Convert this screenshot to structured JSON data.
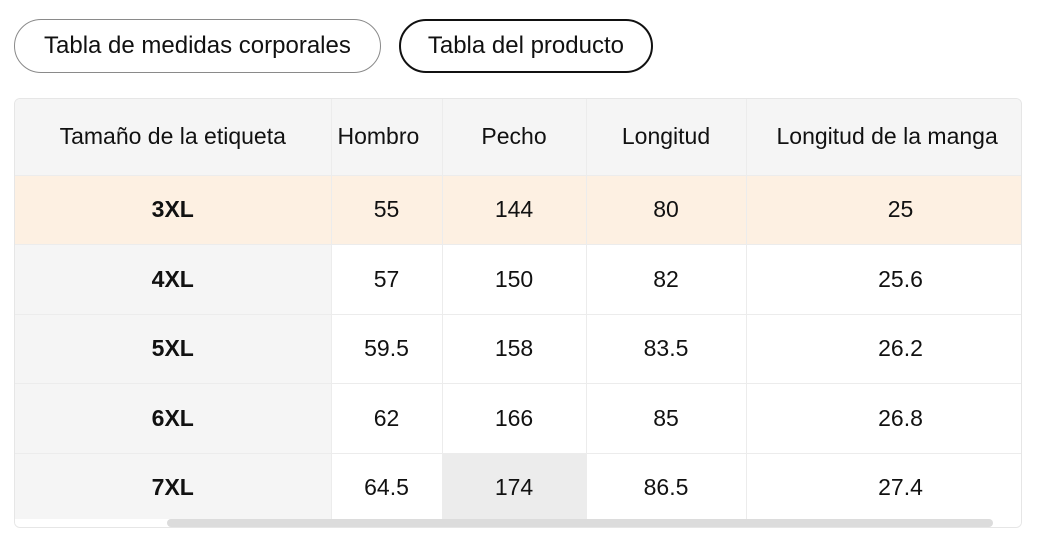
{
  "tabs": [
    {
      "label": "Tabla de medidas corporales",
      "active": false
    },
    {
      "label": "Tabla del producto",
      "active": true
    }
  ],
  "table": {
    "headers": {
      "size": "Tamaño de la etiqueta",
      "shoulder": "Hombro",
      "chest": "Pecho",
      "length": "Longitud",
      "sleeve": "Longitud de la manga"
    },
    "rows": [
      {
        "size": "3XL",
        "shoulder": "55",
        "chest": "144",
        "length": "80",
        "sleeve": "25"
      },
      {
        "size": "4XL",
        "shoulder": "57",
        "chest": "150",
        "length": "82",
        "sleeve": "25.6"
      },
      {
        "size": "5XL",
        "shoulder": "59.5",
        "chest": "158",
        "length": "83.5",
        "sleeve": "26.2"
      },
      {
        "size": "6XL",
        "shoulder": "62",
        "chest": "166",
        "length": "85",
        "sleeve": "26.8"
      },
      {
        "size": "7XL",
        "shoulder": "64.5",
        "chest": "174",
        "length": "86.5",
        "sleeve": "27.4"
      }
    ]
  },
  "colors": {
    "highlight_row": "#fdf0e2",
    "header_bg": "#f5f5f5",
    "active_border": "#111111"
  }
}
